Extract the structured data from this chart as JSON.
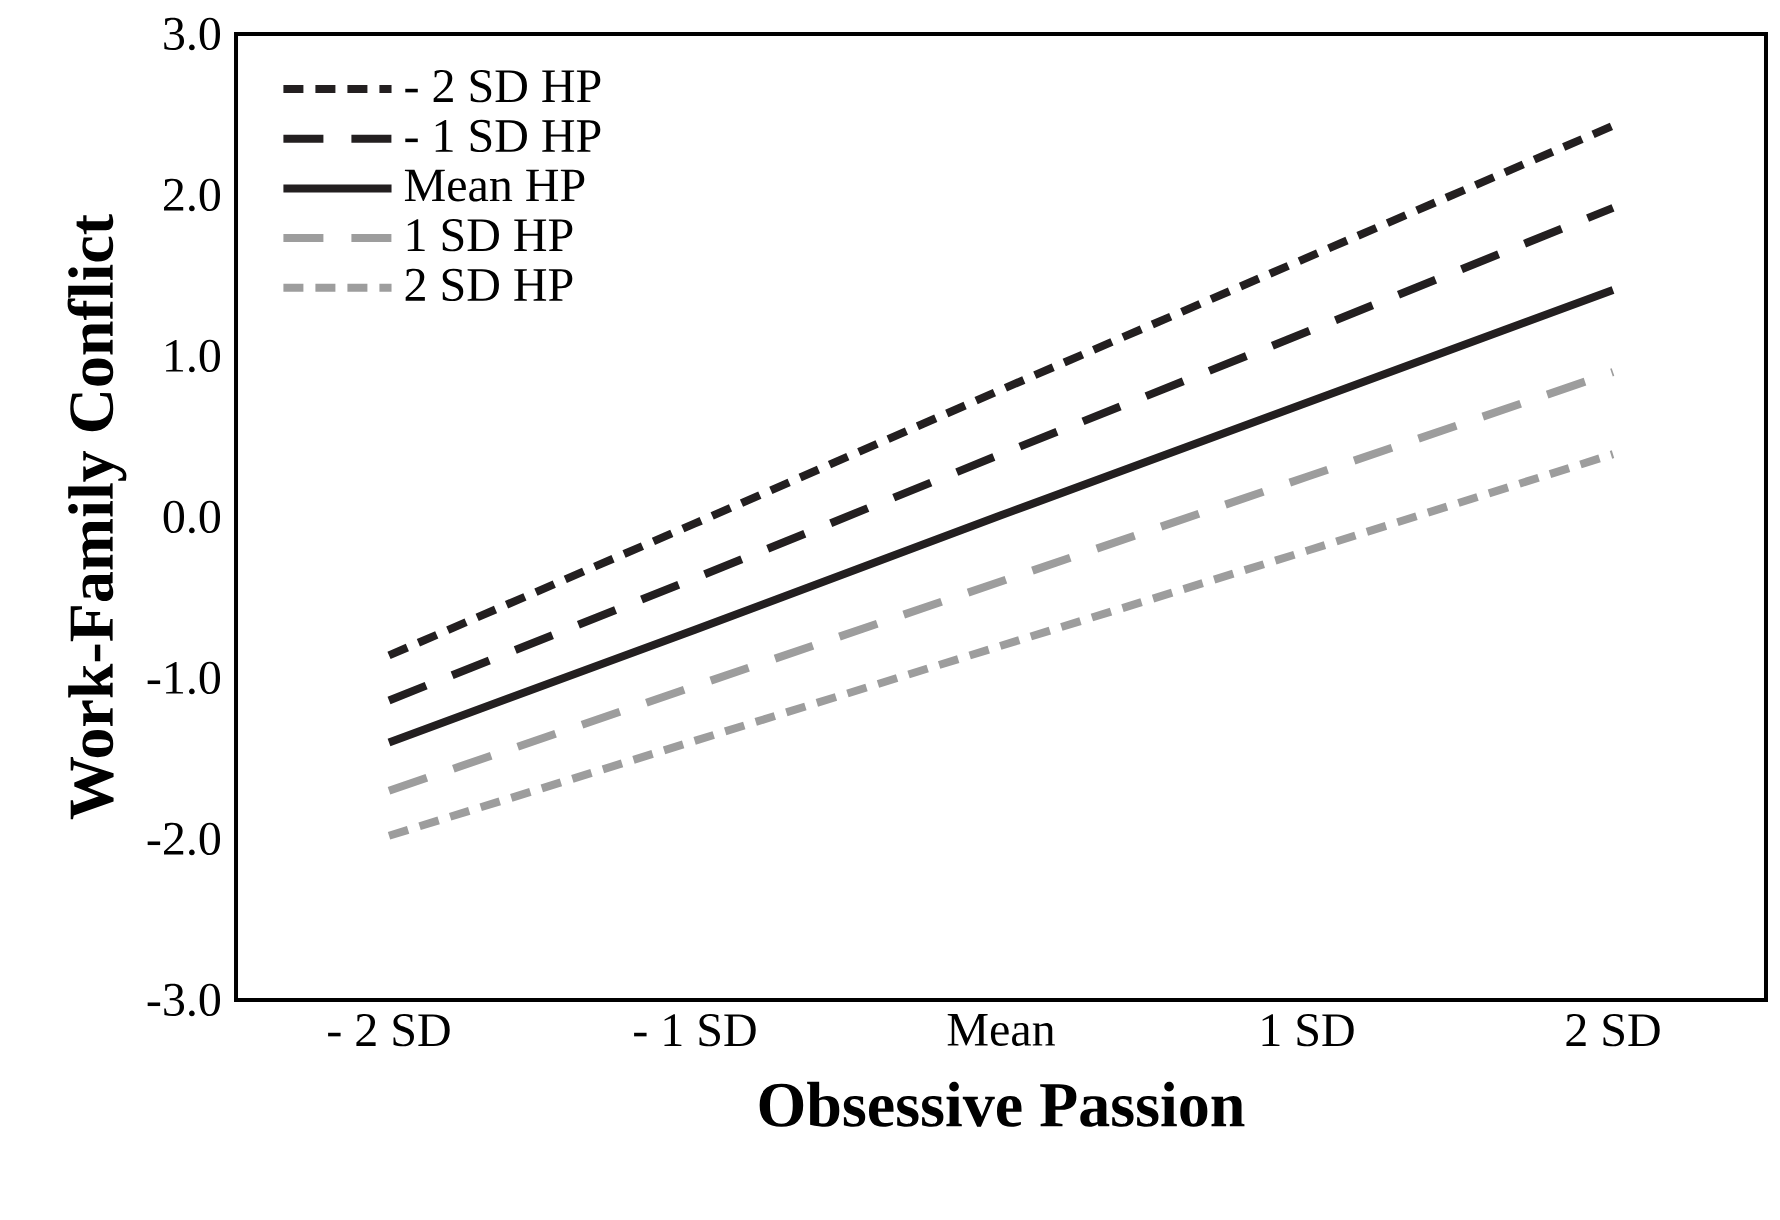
{
  "chart_data": {
    "type": "line",
    "xlabel": "Obsessive Passion",
    "ylabel": "Work-Family Conflict",
    "categories": [
      "- 2 SD",
      "- 1 SD",
      "Mean",
      "1 SD",
      "2 SD"
    ],
    "series": [
      {
        "name": "- 2 SD HP",
        "color": "#231f20",
        "line_style": "dotted",
        "values": [
          -0.86,
          -0.04,
          0.79,
          1.61,
          2.43
        ]
      },
      {
        "name": "- 1 SD HP",
        "color": "#231f20",
        "line_style": "dashed",
        "values": [
          -1.14,
          -0.38,
          0.39,
          1.15,
          1.92
        ]
      },
      {
        "name": "Mean HP",
        "color": "#231f20",
        "line_style": "solid",
        "values": [
          -1.4,
          -0.7,
          0.01,
          0.71,
          1.41
        ]
      },
      {
        "name": "1 SD HP",
        "color": "#9d9d9d",
        "line_style": "dashed",
        "values": [
          -1.7,
          -1.05,
          -0.4,
          0.25,
          0.9
        ]
      },
      {
        "name": "2 SD HP",
        "color": "#9d9d9d",
        "line_style": "dotted",
        "values": [
          -1.98,
          -1.39,
          -0.8,
          -0.21,
          0.39
        ]
      }
    ],
    "ylim": [
      -3,
      3
    ],
    "yticks": [
      {
        "value": -3,
        "label": "-3.0"
      },
      {
        "value": -2,
        "label": "-2.0"
      },
      {
        "value": -1,
        "label": "-1.0"
      },
      {
        "value": 0,
        "label": "0.0"
      },
      {
        "value": 1,
        "label": "1.0"
      },
      {
        "value": 2,
        "label": "2.0"
      },
      {
        "value": 3,
        "label": "3.0"
      }
    ],
    "grid": false,
    "legend": "top left",
    "marker": "none"
  }
}
